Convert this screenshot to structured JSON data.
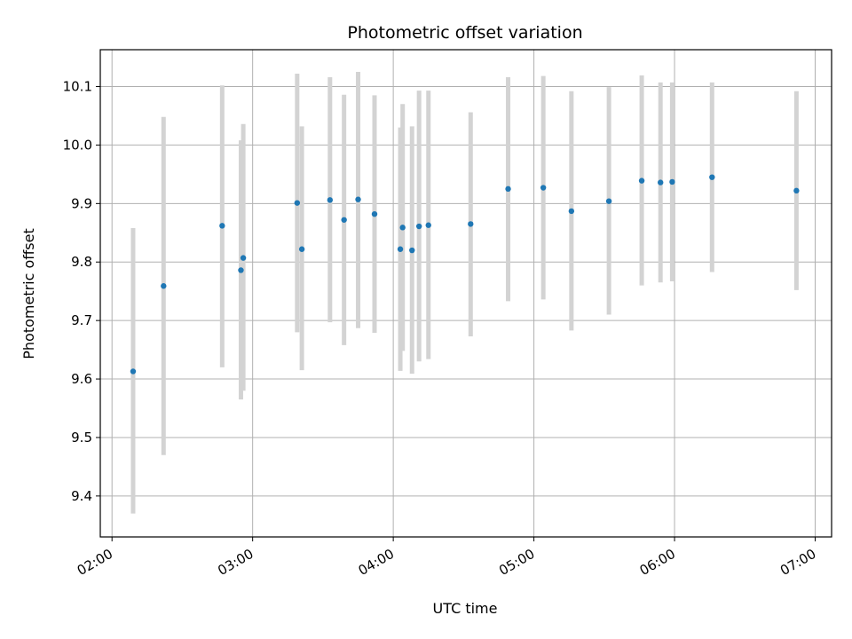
{
  "chart_data": {
    "type": "scatter",
    "title": "Photometric offset variation",
    "xlabel": "UTC time",
    "ylabel": "Photometric offset",
    "grid": true,
    "xlim": [
      "01:55",
      "07:07"
    ],
    "ylim": [
      9.33,
      10.163
    ],
    "x_ticks": [
      "02:00",
      "03:00",
      "04:00",
      "05:00",
      "06:00",
      "07:00"
    ],
    "y_ticks": [
      9.4,
      9.5,
      9.6,
      9.7,
      9.8,
      9.9,
      10.0,
      10.1
    ],
    "colors": {
      "point": "#1f77b4",
      "errorbar": "#d3d3d3",
      "grid": "#b0b0b0"
    },
    "points": [
      {
        "time": "02:09",
        "value": 9.613,
        "low": 9.37,
        "high": 9.858
      },
      {
        "time": "02:22",
        "value": 9.759,
        "low": 9.47,
        "high": 10.048
      },
      {
        "time": "02:47",
        "value": 9.862,
        "low": 9.62,
        "high": 10.102
      },
      {
        "time": "02:55",
        "value": 9.786,
        "low": 9.565,
        "high": 10.008
      },
      {
        "time": "02:56",
        "value": 9.807,
        "low": 9.58,
        "high": 10.036
      },
      {
        "time": "03:19",
        "value": 9.901,
        "low": 9.68,
        "high": 10.122
      },
      {
        "time": "03:21",
        "value": 9.822,
        "low": 9.615,
        "high": 10.032
      },
      {
        "time": "03:33",
        "value": 9.906,
        "low": 9.697,
        "high": 10.116
      },
      {
        "time": "03:39",
        "value": 9.872,
        "low": 9.658,
        "high": 10.086
      },
      {
        "time": "03:45",
        "value": 9.907,
        "low": 9.687,
        "high": 10.125
      },
      {
        "time": "03:52",
        "value": 9.882,
        "low": 9.679,
        "high": 10.085
      },
      {
        "time": "04:03",
        "value": 9.822,
        "low": 9.614,
        "high": 10.03
      },
      {
        "time": "04:04",
        "value": 9.859,
        "low": 9.648,
        "high": 10.07
      },
      {
        "time": "04:08",
        "value": 9.82,
        "low": 9.609,
        "high": 10.032
      },
      {
        "time": "04:11",
        "value": 9.861,
        "low": 9.63,
        "high": 10.093
      },
      {
        "time": "04:15",
        "value": 9.863,
        "low": 9.634,
        "high": 10.093
      },
      {
        "time": "04:33",
        "value": 9.865,
        "low": 9.673,
        "high": 10.056
      },
      {
        "time": "04:49",
        "value": 9.925,
        "low": 9.733,
        "high": 10.116
      },
      {
        "time": "05:04",
        "value": 9.927,
        "low": 9.736,
        "high": 10.118
      },
      {
        "time": "05:16",
        "value": 9.887,
        "low": 9.683,
        "high": 10.092
      },
      {
        "time": "05:32",
        "value": 9.904,
        "low": 9.71,
        "high": 10.099
      },
      {
        "time": "05:46",
        "value": 9.939,
        "low": 9.76,
        "high": 10.119
      },
      {
        "time": "05:54",
        "value": 9.936,
        "low": 9.765,
        "high": 10.107
      },
      {
        "time": "05:59",
        "value": 9.937,
        "low": 9.767,
        "high": 10.107
      },
      {
        "time": "06:16",
        "value": 9.945,
        "low": 9.783,
        "high": 10.107
      },
      {
        "time": "06:52",
        "value": 9.922,
        "low": 9.752,
        "high": 10.092
      }
    ]
  }
}
